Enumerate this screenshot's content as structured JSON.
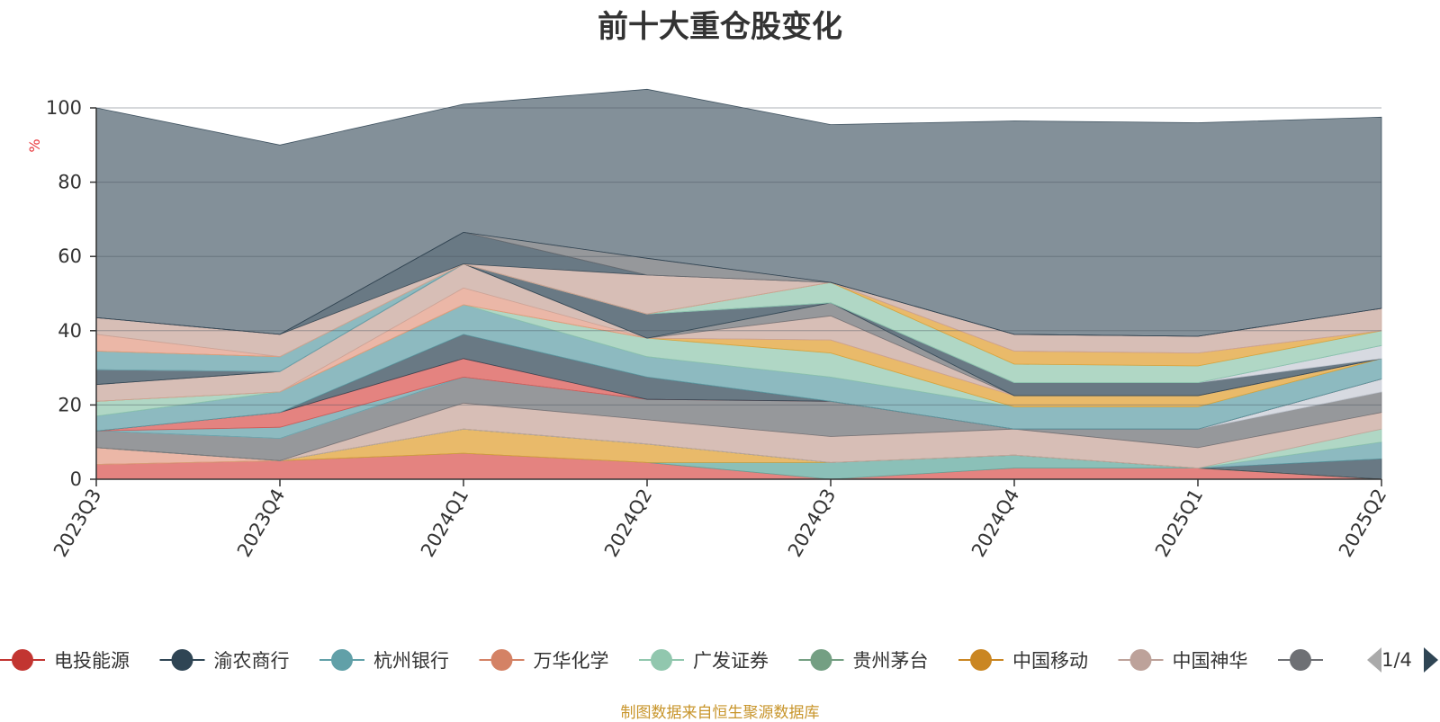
{
  "chart_data": {
    "type": "area",
    "title": "前十大重仓股变化",
    "ylabel": "%",
    "ylim": [
      0,
      100
    ],
    "yticks": [
      0,
      20,
      40,
      60,
      80,
      100
    ],
    "grid": true,
    "stacked": true,
    "categories": [
      "2023Q3",
      "2023Q4",
      "2024Q1",
      "2024Q2",
      "2024Q3",
      "2024Q4",
      "2025Q1",
      "2025Q2"
    ],
    "series": [
      {
        "name": "电投能源",
        "color": "#d9534f",
        "values": [
          4,
          5,
          7,
          4.5,
          0,
          3,
          3,
          0
        ]
      },
      {
        "name": "",
        "color": "#5ea89c",
        "values": [
          0,
          0,
          0,
          0,
          4.5,
          3.5,
          0,
          0
        ]
      },
      {
        "name": "",
        "color": "#e0a030",
        "values": [
          0,
          0,
          6.5,
          5,
          0,
          0,
          0,
          0
        ]
      },
      {
        "name": "",
        "color": "#e39b85",
        "values": [
          4.5,
          0,
          0,
          0,
          0,
          0,
          0,
          0
        ]
      },
      {
        "name": "渝农商行",
        "color": "#2f4554",
        "values": [
          0,
          0,
          0,
          0,
          0,
          0,
          0,
          5.5
        ]
      },
      {
        "name": "杭州银行",
        "color": "#61a0a8",
        "values": [
          0,
          0,
          0,
          0,
          0,
          0,
          0,
          4.5
        ]
      },
      {
        "name": "广发证券",
        "color": "#91c7ae",
        "values": [
          0,
          0,
          0,
          0,
          0,
          0,
          0,
          3.5
        ]
      },
      {
        "name": "中国神华",
        "color": "#c8a59a",
        "values": [
          0,
          0,
          7,
          6.5,
          7,
          7,
          5.5,
          4.5
        ]
      },
      {
        "name": "",
        "color": "#6e7074",
        "values": [
          4.5,
          6,
          7,
          5.5,
          9.5,
          0,
          5,
          5.5
        ]
      },
      {
        "name": "",
        "color": "#c7ccd6",
        "values": [
          0,
          0,
          0,
          0,
          0,
          0,
          0,
          3.5
        ]
      },
      {
        "name": "",
        "color": "#61a0a8",
        "values": [
          0,
          3,
          0,
          0,
          0,
          0,
          0,
          0
        ]
      },
      {
        "name": "",
        "color": "#d9534f",
        "values": [
          0,
          4,
          5,
          0,
          0,
          0,
          0,
          0
        ]
      },
      {
        "name": "",
        "color": "#2f4554",
        "values": [
          0,
          0,
          6.5,
          6,
          0,
          0,
          0,
          0
        ]
      },
      {
        "name": "",
        "color": "#61a0a8",
        "values": [
          4,
          5.5,
          8,
          5.5,
          6.5,
          6,
          6,
          5.5
        ]
      },
      {
        "name": "",
        "color": "#91c7ae",
        "values": [
          4,
          0,
          0,
          5,
          6.5,
          0,
          0,
          0
        ]
      },
      {
        "name": "",
        "color": "#e0a030",
        "values": [
          0,
          0,
          0,
          0,
          3.5,
          3,
          3,
          0
        ]
      },
      {
        "name": "",
        "color": "#e39b85",
        "values": [
          0,
          0,
          4.5,
          0,
          0,
          0,
          0,
          0
        ]
      },
      {
        "name": "",
        "color": "#c8a59a",
        "values": [
          4.5,
          5.5,
          6.5,
          0,
          6.5,
          0,
          0,
          0
        ]
      },
      {
        "name": "",
        "color": "#6e7074",
        "values": [
          0,
          0,
          0,
          0,
          3.5,
          0,
          0,
          0
        ]
      },
      {
        "name": "",
        "color": "#2f4554",
        "values": [
          4,
          0,
          0,
          6.5,
          0,
          3.5,
          3.5,
          0
        ]
      },
      {
        "name": "",
        "color": "#c7ccd6",
        "values": [
          0,
          0,
          0,
          0,
          0,
          0,
          0,
          3.5
        ]
      },
      {
        "name": "",
        "color": "#61a0a8",
        "values": [
          5,
          4,
          0,
          0,
          0,
          0,
          0,
          0
        ]
      },
      {
        "name": "",
        "color": "#91c7ae",
        "values": [
          0,
          0,
          0,
          0,
          5.5,
          5,
          4.5,
          4
        ]
      },
      {
        "name": "",
        "color": "#e0a030",
        "values": [
          0,
          0,
          0,
          0,
          0,
          3.5,
          3.5,
          0
        ]
      },
      {
        "name": "",
        "color": "#e39b85",
        "values": [
          4.5,
          0,
          0,
          0,
          0,
          0,
          0,
          0
        ]
      },
      {
        "name": "",
        "color": "#c8a59a",
        "values": [
          4.5,
          6,
          0,
          10.5,
          0,
          4.5,
          4.5,
          6
        ]
      },
      {
        "name": "",
        "color": "#2f4554",
        "values": [
          0,
          0,
          8.5,
          0,
          0,
          0,
          0,
          0
        ]
      },
      {
        "name": "",
        "color": "#6e7074",
        "values": [
          0,
          0,
          0,
          4.5,
          0,
          0,
          0,
          0
        ]
      },
      {
        "name": "",
        "color": "#2a3f4f",
        "values": [
          56.5,
          51,
          34.5,
          45.5,
          42.5,
          57.5,
          57.5,
          51.5
        ]
      }
    ]
  },
  "legend": {
    "items": [
      {
        "name": "电投能源",
        "color": "#c23531"
      },
      {
        "name": "渝农商行",
        "color": "#2f4554"
      },
      {
        "name": "杭州银行",
        "color": "#61a0a8"
      },
      {
        "name": "万华化学",
        "color": "#d48265"
      },
      {
        "name": "广发证券",
        "color": "#91c7ae"
      },
      {
        "name": "贵州茅台",
        "color": "#749f83"
      },
      {
        "name": "中国移动",
        "color": "#ca8622"
      },
      {
        "name": "中国神华",
        "color": "#bda29a"
      },
      {
        "name": "",
        "color": "#6e7074"
      }
    ],
    "page": "1/4"
  },
  "source_note": "制图数据来自恒生聚源数据库"
}
